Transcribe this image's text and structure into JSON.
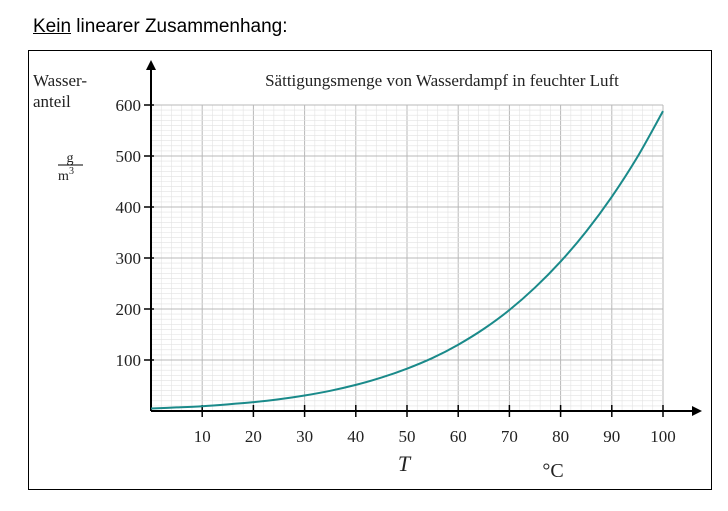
{
  "heading": {
    "underlined": "Kein",
    "rest": " linearer Zusammenhang:"
  },
  "chart_data": {
    "type": "line",
    "title": "Sättigungsmenge von Wasserdampf in feuchter Luft",
    "ylabel_line1": "Wasser-",
    "ylabel_line2": "anteil",
    "yunit_num": "g",
    "yunit_den": "m3",
    "xlabel": "T",
    "xunit": "°C",
    "xlim": [
      0,
      100
    ],
    "ylim": [
      0,
      600
    ],
    "xticks": [
      10,
      20,
      30,
      40,
      50,
      60,
      70,
      80,
      90,
      100
    ],
    "yticks": [
      100,
      200,
      300,
      400,
      500,
      600
    ],
    "grid": true,
    "line_color": "#1a8a8a",
    "series": [
      {
        "x": [
          0,
          5,
          10,
          15,
          20,
          25,
          30,
          35,
          40,
          45,
          50,
          55,
          60,
          65,
          70,
          75,
          80,
          85,
          90,
          95,
          100
        ],
        "y": [
          5,
          7,
          9.4,
          13,
          17.3,
          23,
          30.4,
          39.6,
          51.2,
          65.5,
          83,
          104,
          130,
          161,
          198,
          242,
          293,
          352,
          420,
          498,
          588
        ]
      }
    ]
  }
}
